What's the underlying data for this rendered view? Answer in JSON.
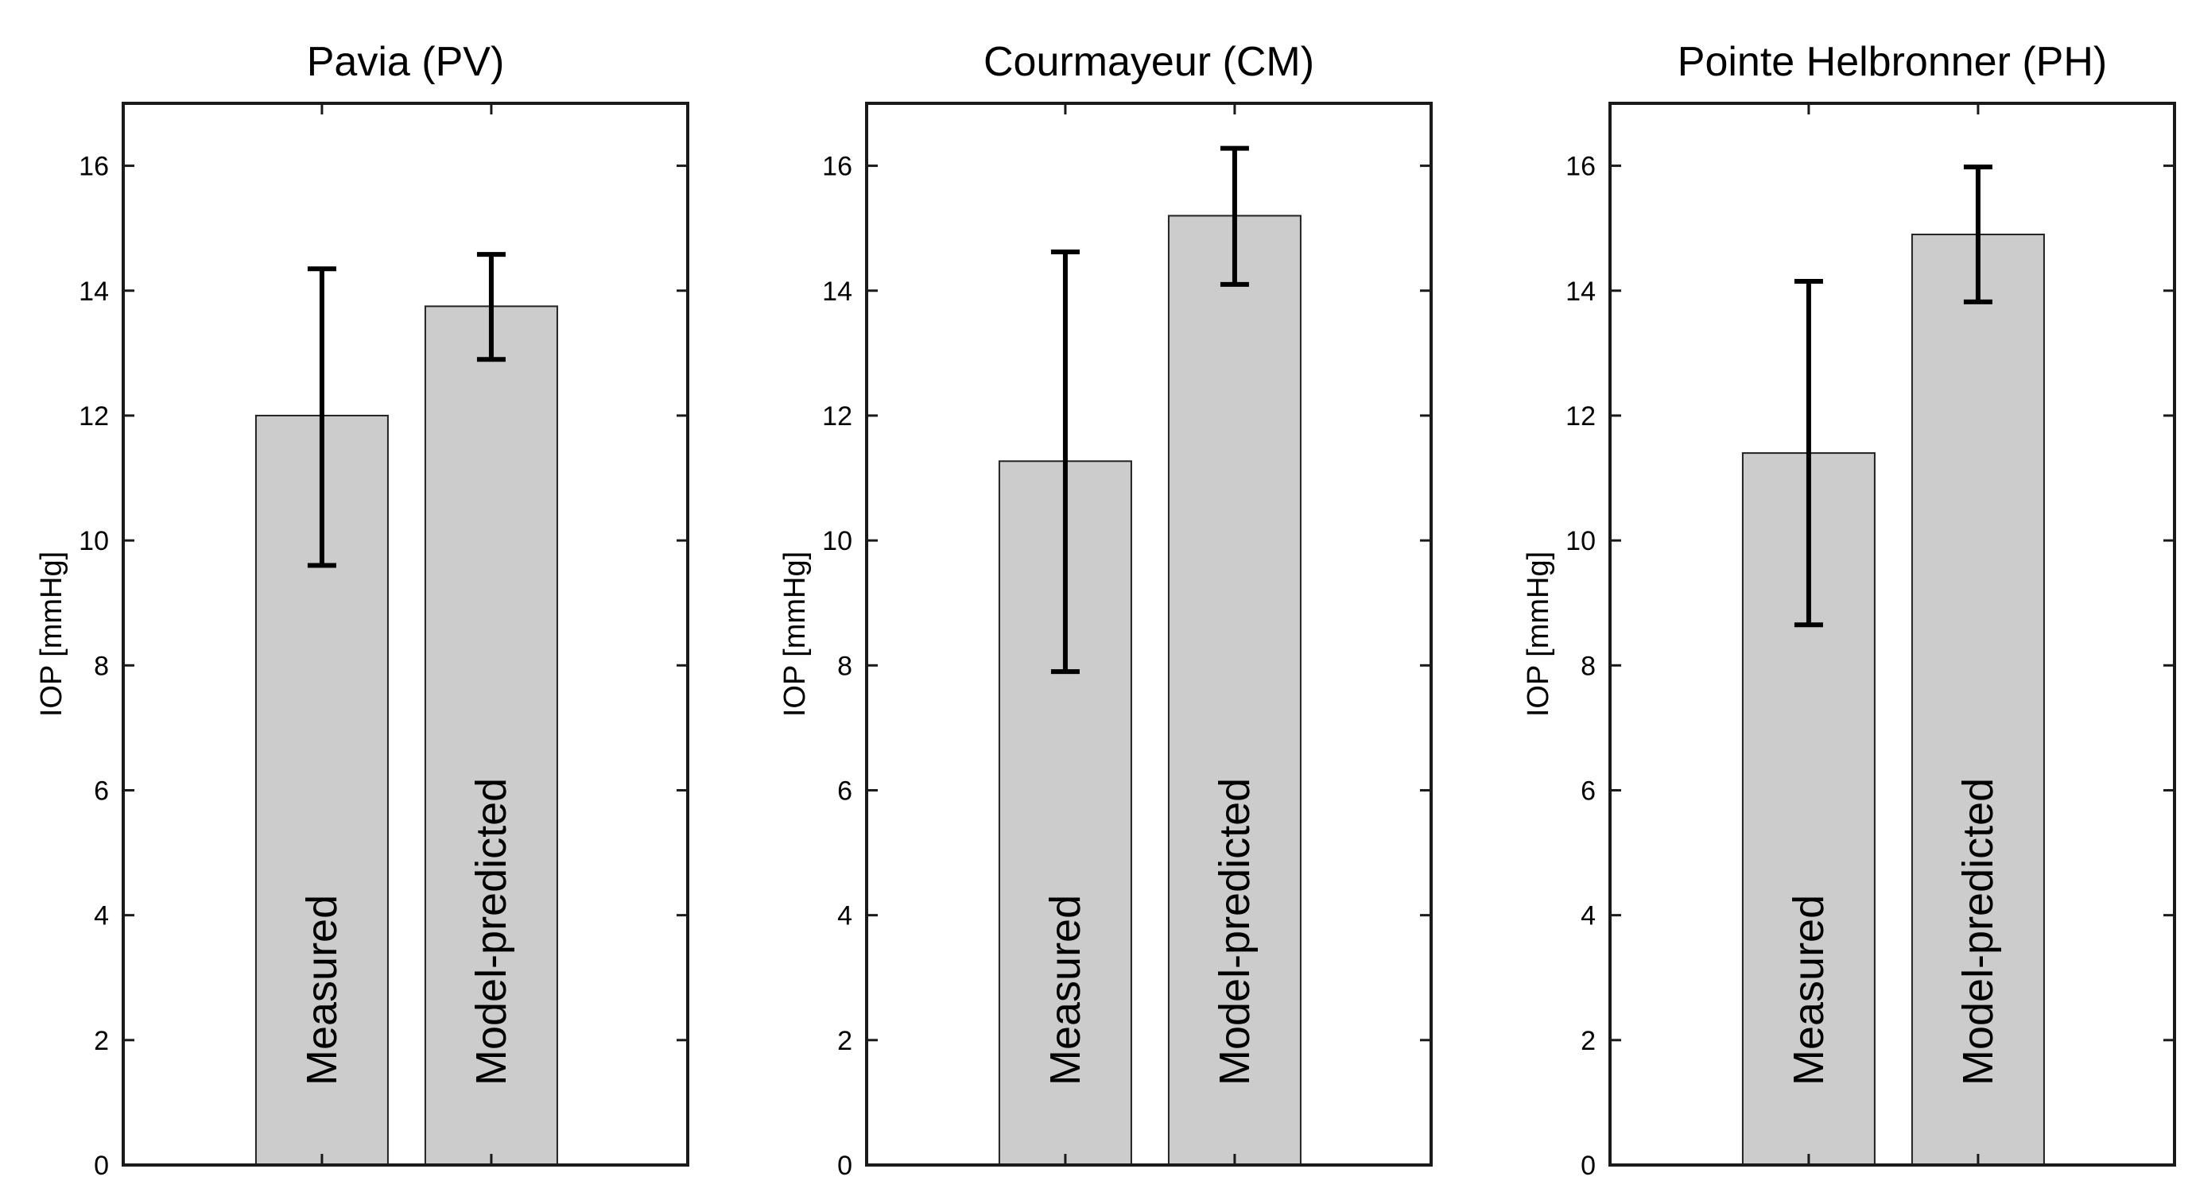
{
  "chart_data": [
    {
      "type": "bar",
      "title": "Pavia (PV)",
      "ylabel": "IOP [mmHg]",
      "xlabel": "",
      "ylim": [
        0,
        17
      ],
      "yticks": [
        0,
        2,
        4,
        6,
        8,
        10,
        12,
        14,
        16
      ],
      "categories": [
        "Measured",
        "Model-predicted"
      ],
      "values": [
        12.0,
        13.75
      ],
      "error_low": [
        9.6,
        12.9
      ],
      "error_high": [
        14.35,
        14.58
      ],
      "bar_color": "#cccccc"
    },
    {
      "type": "bar",
      "title": "Courmayeur (CM)",
      "ylabel": "IOP [mmHg]",
      "xlabel": "",
      "ylim": [
        0,
        17
      ],
      "yticks": [
        0,
        2,
        4,
        6,
        8,
        10,
        12,
        14,
        16
      ],
      "categories": [
        "Measured",
        "Model-predicted"
      ],
      "values": [
        11.27,
        15.2
      ],
      "error_low": [
        7.9,
        14.1
      ],
      "error_high": [
        14.62,
        16.28
      ],
      "bar_color": "#cccccc"
    },
    {
      "type": "bar",
      "title": "Pointe Helbronner (PH)",
      "ylabel": "IOP [mmHg]",
      "xlabel": "",
      "ylim": [
        0,
        17
      ],
      "yticks": [
        0,
        2,
        4,
        6,
        8,
        10,
        12,
        14,
        16
      ],
      "categories": [
        "Measured",
        "Model-predicted"
      ],
      "values": [
        11.4,
        14.9
      ],
      "error_low": [
        8.65,
        13.82
      ],
      "error_high": [
        14.15,
        15.98
      ],
      "bar_color": "#cccccc"
    }
  ]
}
